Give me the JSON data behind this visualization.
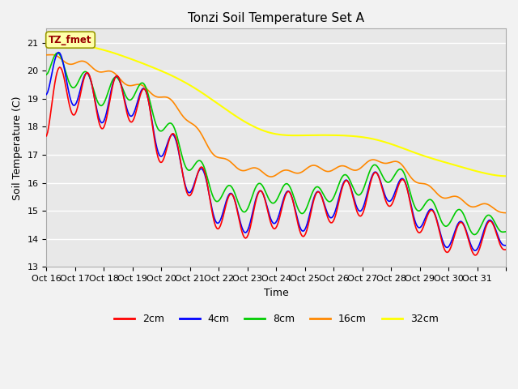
{
  "title": "Tonzi Soil Temperature Set A",
  "xlabel": "Time",
  "ylabel": "Soil Temperature (C)",
  "ylim": [
    13.0,
    21.5
  ],
  "colors": {
    "2cm": "#ff0000",
    "4cm": "#0000ff",
    "8cm": "#00cc00",
    "16cm": "#ff8800",
    "32cm": "#ffff00"
  },
  "legend_label": "TZ_fmet",
  "bg_color": "#e8e8e8",
  "fig_bg_color": "#f2f2f2",
  "grid_color": "#ffffff",
  "title_fontsize": 11,
  "axis_fontsize": 9,
  "tick_fontsize": 8
}
